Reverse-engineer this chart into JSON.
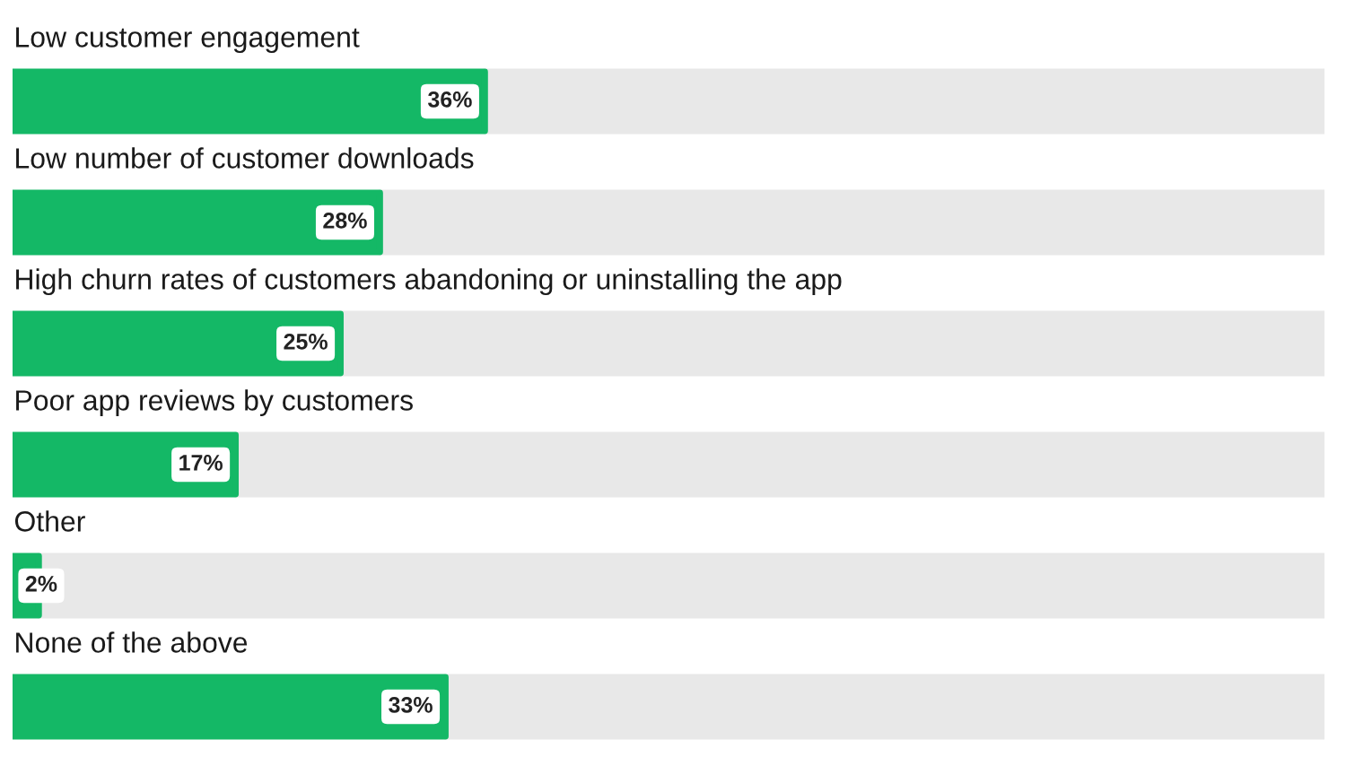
{
  "chart_data": {
    "type": "bar",
    "orientation": "horizontal",
    "stacked": true,
    "categories": [
      "Low customer engagement",
      "Low number of customer downloads",
      "High churn rates of customers abandoning or uninstalling the app",
      "Poor app reviews by customers",
      "Other",
      "None of the above"
    ],
    "series": [
      {
        "color": "#14b866",
        "values": [
          36,
          28,
          25,
          17,
          2,
          33
        ],
        "value_labels": [
          "36%",
          "28%",
          "25%",
          "17%",
          "2%",
          "33%"
        ]
      },
      {
        "color": "#e8e8e8",
        "values": [
          64,
          72,
          75,
          83,
          98,
          67
        ]
      }
    ],
    "xlim": [
      0,
      100
    ],
    "tick_labels": "y"
  }
}
